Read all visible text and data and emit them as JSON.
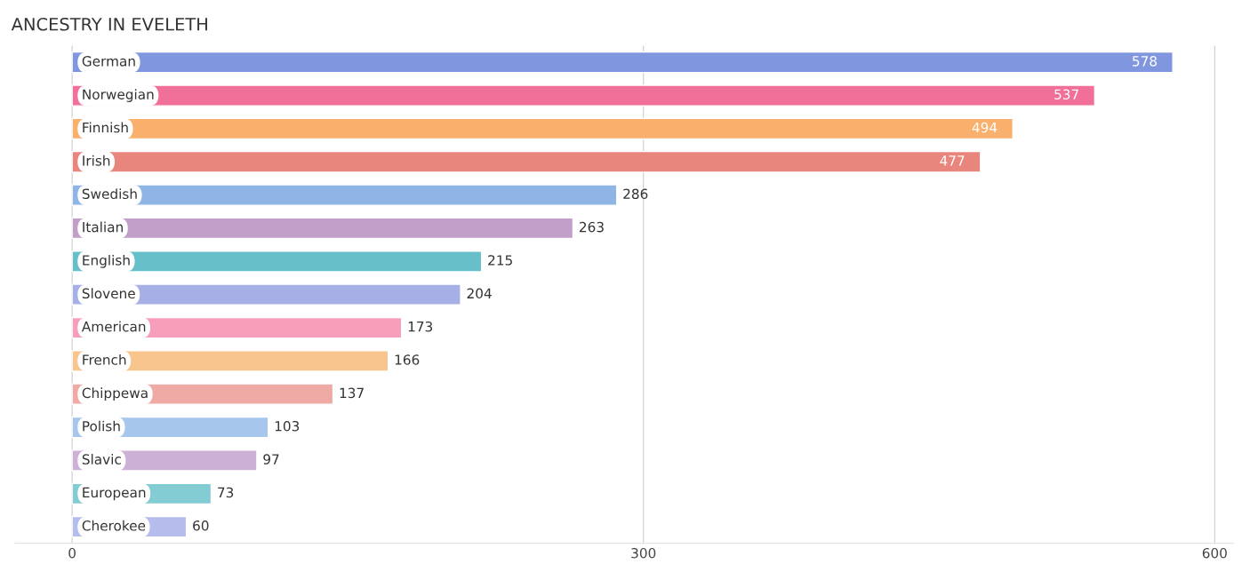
{
  "chart_data": {
    "type": "bar",
    "orientation": "horizontal",
    "title": "ANCESTRY IN EVELETH",
    "categories": [
      "German",
      "Norwegian",
      "Finnish",
      "Irish",
      "Swedish",
      "Italian",
      "English",
      "Slovene",
      "American",
      "French",
      "Chippewa",
      "Polish",
      "Slavic",
      "European",
      "Cherokee"
    ],
    "values": [
      578,
      537,
      494,
      477,
      286,
      263,
      215,
      204,
      173,
      166,
      137,
      103,
      97,
      73,
      60
    ],
    "colors": [
      "#8097e0",
      "#f0709a",
      "#f9b06c",
      "#e8857c",
      "#8fb4e6",
      "#c19fc8",
      "#67c0c9",
      "#a7b0e6",
      "#f79ebb",
      "#f9c58f",
      "#f0aaa6",
      "#a6c6ec",
      "#cdb0d6",
      "#83ccd4",
      "#b5bdec"
    ],
    "xlim": [
      -30,
      610
    ],
    "xticks": [
      0,
      300,
      600
    ],
    "grid": "x",
    "data_labels": true
  }
}
